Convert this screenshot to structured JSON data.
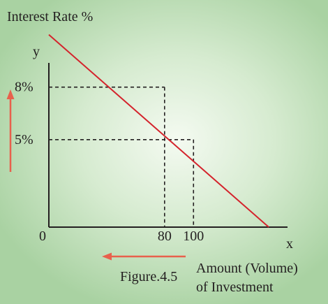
{
  "chart_data": {
    "type": "line",
    "ylabel": "Interest Rate %",
    "y_axis_letter": "y",
    "x_axis_letter": "x",
    "origin_label": "0",
    "xlabel_line1": "Amount (Volume)",
    "xlabel_line2": "of Investment",
    "caption": "Figure.4.5",
    "xlim": [
      0,
      165
    ],
    "ylim": [
      0,
      12.5
    ],
    "series": [
      {
        "points": [
          [
            0,
            11
          ],
          [
            152,
            0
          ]
        ]
      }
    ],
    "reference_points": [
      {
        "x": 80,
        "y": 8,
        "x_label": "80",
        "y_label": "8%"
      },
      {
        "x": 100,
        "y": 5,
        "x_label": "100",
        "y_label": "5%"
      }
    ],
    "colors": {
      "line": "#d4232c",
      "arrow": "#e8604c",
      "axis": "#231f20"
    }
  }
}
